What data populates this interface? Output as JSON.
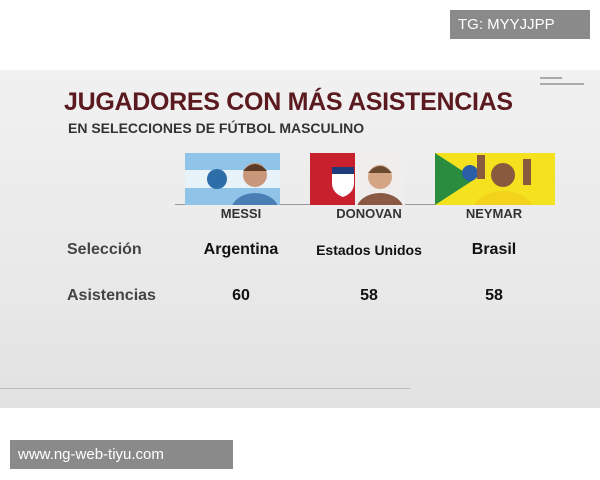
{
  "watermark": "TG: MYYJJPP",
  "header": {
    "title": "JUGADORES CON MÁS ASISTENCIAS",
    "subtitle": "EN SELECCIONES DE FÚTBOL MASCULINO"
  },
  "table": {
    "columns": [
      "MESSI",
      "DONOVAN",
      "NEYMAR"
    ],
    "rows": [
      {
        "label": "Selección",
        "values": [
          "Argentina",
          "Estados Unidos",
          "Brasil"
        ]
      },
      {
        "label": "Asistencias",
        "values": [
          60,
          58,
          58
        ]
      }
    ]
  },
  "footer": "www.ng-web-tiyu.com"
}
